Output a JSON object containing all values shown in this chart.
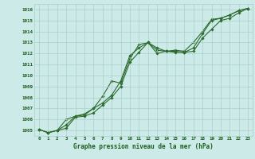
{
  "title": "Graphe pression niveau de la mer (hPa)",
  "x_values": [
    0,
    1,
    2,
    3,
    4,
    5,
    6,
    7,
    8,
    9,
    10,
    11,
    12,
    13,
    14,
    15,
    16,
    17,
    18,
    19,
    20,
    21,
    22,
    23
  ],
  "line1": [
    1005.1,
    1004.8,
    1005.0,
    1005.2,
    1006.2,
    1006.3,
    1006.6,
    1007.3,
    1008.0,
    1009.0,
    1011.2,
    1012.1,
    1013.0,
    1012.5,
    1012.2,
    1012.2,
    1012.1,
    1012.2,
    1013.4,
    1014.2,
    1015.0,
    1015.2,
    1015.7,
    1016.1
  ],
  "line2": [
    1005.1,
    1004.8,
    1005.0,
    1005.5,
    1006.3,
    1006.4,
    1007.0,
    1007.5,
    1008.2,
    1009.5,
    1011.8,
    1012.5,
    1013.0,
    1012.0,
    1012.2,
    1012.1,
    1012.1,
    1012.5,
    1013.8,
    1015.0,
    1015.2,
    1015.5,
    1015.9,
    1016.1
  ],
  "line3": [
    1005.1,
    1004.8,
    1005.0,
    1006.0,
    1006.3,
    1006.5,
    1007.0,
    1008.1,
    1009.5,
    1009.3,
    1011.5,
    1012.8,
    1013.0,
    1012.3,
    1012.2,
    1012.3,
    1012.2,
    1013.0,
    1014.0,
    1015.1,
    1015.2,
    1015.5,
    1015.9,
    1016.1
  ],
  "line_color": "#2d6b2d",
  "bg_color": "#cceae8",
  "grid_color": "#aad0cc",
  "text_color": "#1a5c1a",
  "ylim_min": 1004.5,
  "ylim_max": 1016.5,
  "yticks": [
    1005,
    1006,
    1007,
    1008,
    1009,
    1010,
    1011,
    1012,
    1013,
    1014,
    1015,
    1016
  ],
  "marker": "D",
  "marker_size": 1.8,
  "linewidth": 0.8
}
